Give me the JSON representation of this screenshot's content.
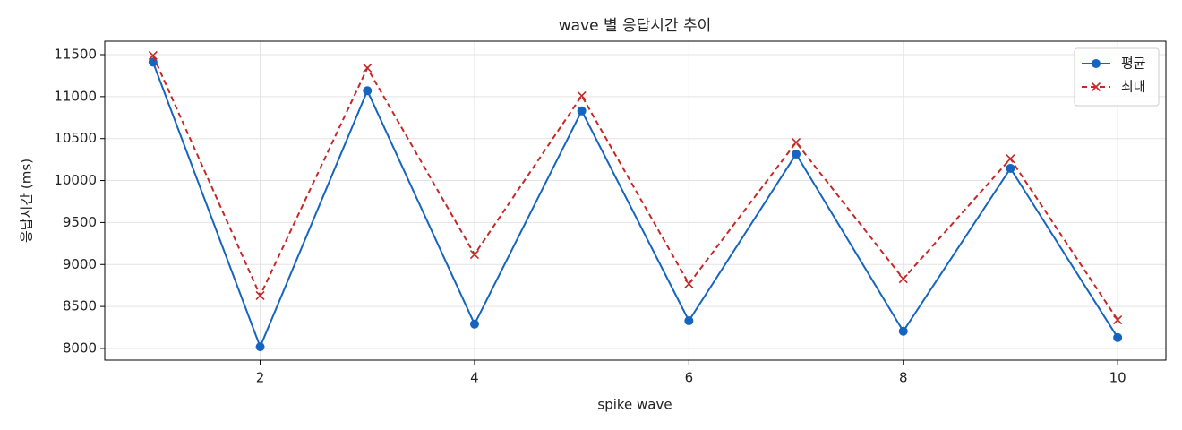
{
  "chart_data": {
    "type": "line",
    "title": "wave 별 응답시간 추이",
    "xlabel": "spike wave",
    "ylabel": "응답시간 (ms)",
    "x": [
      1,
      2,
      3,
      4,
      5,
      6,
      7,
      8,
      9,
      10
    ],
    "series": [
      {
        "name": "평균",
        "color": "#1565c0",
        "marker": "o",
        "dash": "solid",
        "values": [
          11410,
          8020,
          11070,
          8290,
          10830,
          8330,
          10315,
          8205,
          10145,
          8130
        ]
      },
      {
        "name": "최대",
        "color": "#c62828",
        "marker": "x",
        "dash": "dashed",
        "values": [
          11490,
          8630,
          11340,
          9120,
          11010,
          8770,
          10455,
          8830,
          10260,
          8340
        ]
      }
    ],
    "xlim": [
      0.55,
      10.45
    ],
    "ylim": [
      7861,
      11660
    ],
    "xticks": [
      2,
      4,
      6,
      8,
      10
    ],
    "yticks": [
      8000,
      8500,
      9000,
      9500,
      10000,
      10500,
      11000,
      11500
    ],
    "grid": true,
    "legend": "upper right"
  }
}
